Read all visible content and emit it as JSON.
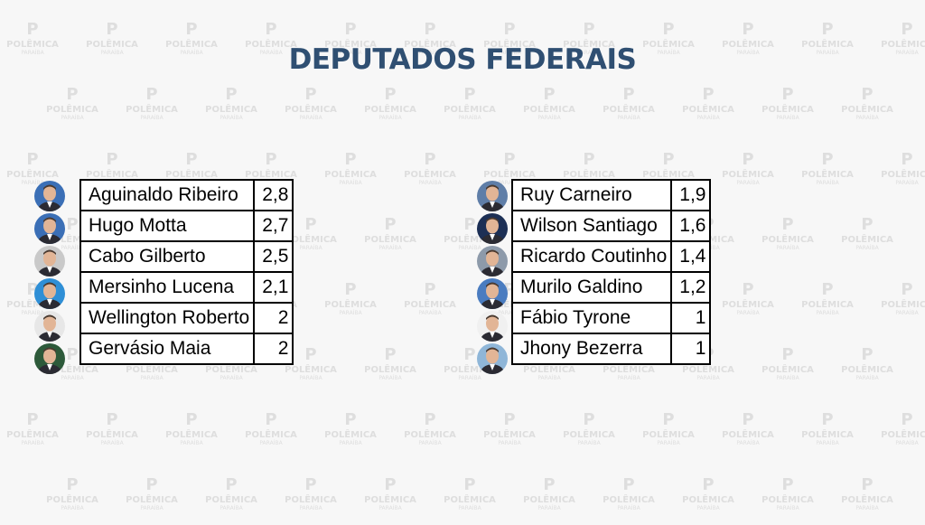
{
  "title": "DEPUTADOS FEDERAIS",
  "watermark": {
    "brand": "POLÊMICA",
    "sub": "PARAÍBA"
  },
  "chart_data": {
    "type": "table",
    "title": "DEPUTADOS FEDERAIS",
    "tables": [
      {
        "rows": [
          {
            "name": "Aguinaldo Ribeiro",
            "value": "2,8"
          },
          {
            "name": "Hugo Motta",
            "value": "2,7"
          },
          {
            "name": "Cabo Gilberto",
            "value": "2,5"
          },
          {
            "name": "Mersinho Lucena",
            "value": "2,1"
          },
          {
            "name": "Wellington Roberto",
            "value": "2"
          },
          {
            "name": "Gervásio Maia",
            "value": "2"
          }
        ]
      },
      {
        "rows": [
          {
            "name": "Ruy Carneiro",
            "value": "1,9"
          },
          {
            "name": "Wilson Santiago",
            "value": "1,6"
          },
          {
            "name": "Ricardo Coutinho",
            "value": "1,4"
          },
          {
            "name": "Murilo Galdino",
            "value": "1,2"
          },
          {
            "name": "Fábio Tyrone",
            "value": "1"
          },
          {
            "name": "Jhony Bezerra",
            "value": "1"
          }
        ]
      }
    ]
  },
  "avatars": [
    [
      "#3b6fb6",
      "#3b6fb6",
      "#c9c9c9",
      "#2f8fd6",
      "#e7e7e7",
      "#2d5a3a"
    ],
    [
      "#5f7ea8",
      "#1c2f55",
      "#8d9aaa",
      "#4a7cc0",
      "#f0f0f0",
      "#8fb6d8"
    ]
  ],
  "colors": {
    "title": "#2f4f72",
    "table_border": "#000000",
    "background": "#f7f7f7",
    "watermark": "#dedede"
  }
}
